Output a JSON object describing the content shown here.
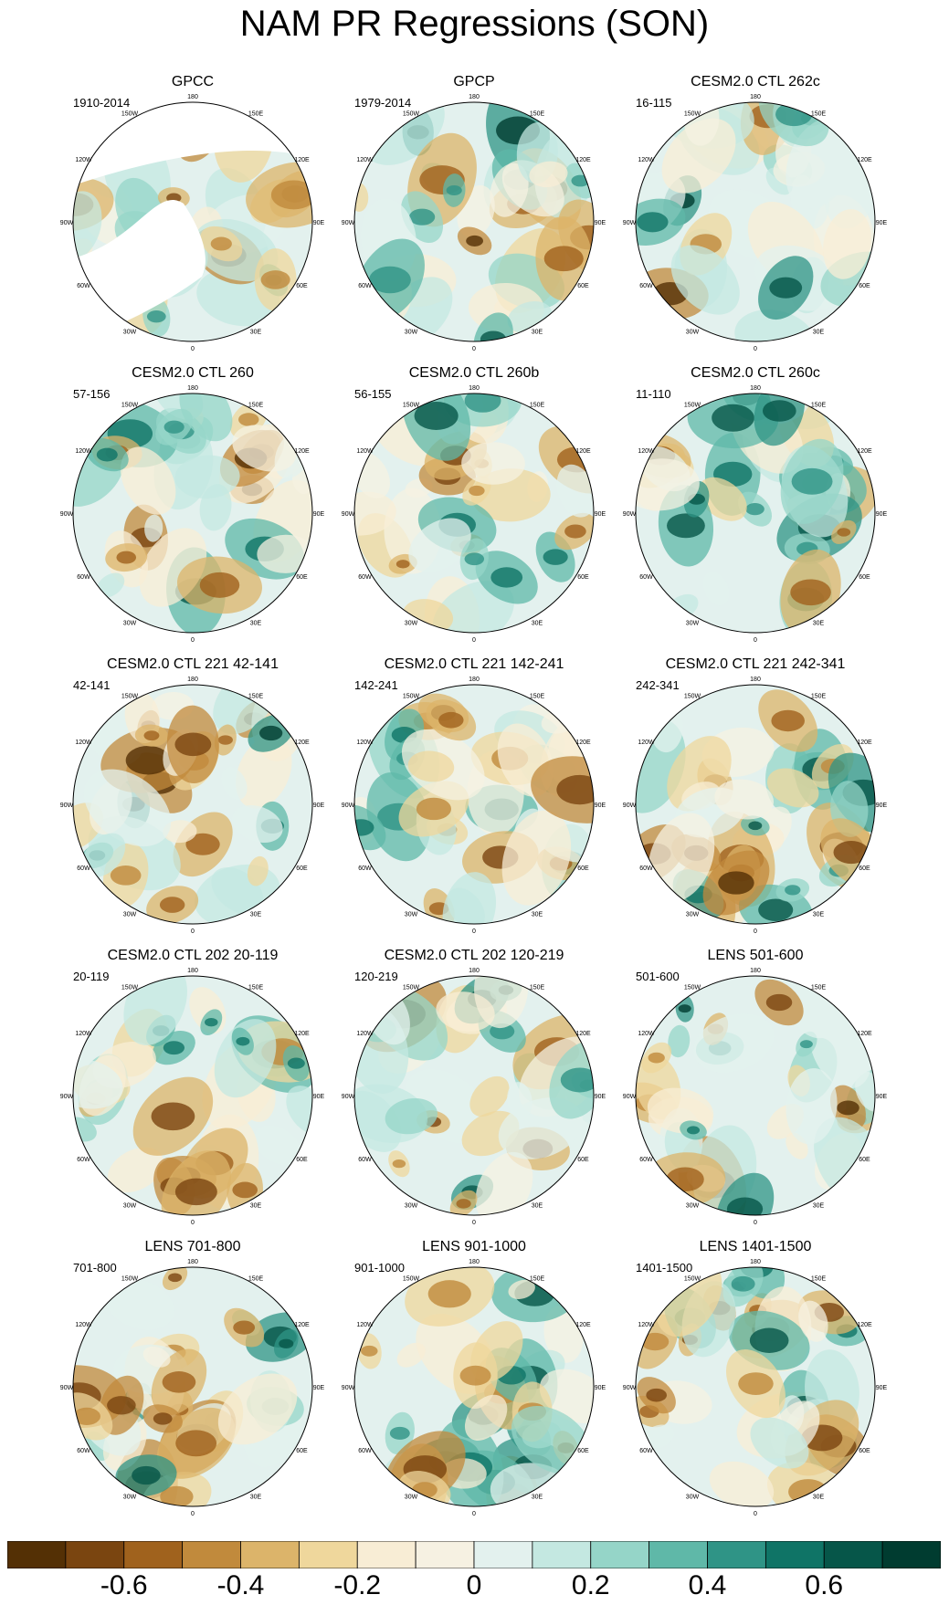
{
  "title": "NAM PR Regressions (SON)",
  "lon_labels": [
    "180",
    "150E",
    "120E",
    "90E",
    "60E",
    "30E",
    "0",
    "30W",
    "60W",
    "90W",
    "120W",
    "150W"
  ],
  "chart_data": {
    "type": "heatmap",
    "projection": "north polar stereographic",
    "variable": "Precipitation regression onto NAM",
    "season": "SON",
    "panels": [
      {
        "title": "GPCC",
        "period": "1910-2014",
        "masked_ocean": true
      },
      {
        "title": "GPCP",
        "period": "1979-2014"
      },
      {
        "title": "CESM2.0 CTL 262c",
        "period": "16-115"
      },
      {
        "title": "CESM2.0 CTL 260",
        "period": "57-156"
      },
      {
        "title": "CESM2.0 CTL 260b",
        "period": "56-155"
      },
      {
        "title": "CESM2.0 CTL 260c",
        "period": "11-110"
      },
      {
        "title": "CESM2.0 CTL 221 42-141",
        "period": "42-141"
      },
      {
        "title": "CESM2.0 CTL 221 142-241",
        "period": "142-241"
      },
      {
        "title": "CESM2.0 CTL 221 242-341",
        "period": "242-341"
      },
      {
        "title": "CESM2.0 CTL 202 20-119",
        "period": "20-119"
      },
      {
        "title": "CESM2.0 CTL 202 120-219",
        "period": "120-219"
      },
      {
        "title": "LENS 501-600",
        "period": "501-600"
      },
      {
        "title": "LENS 701-800",
        "period": "701-800"
      },
      {
        "title": "LENS 901-1000",
        "period": "901-1000"
      },
      {
        "title": "LENS 1401-1500",
        "period": "1401-1500"
      }
    ],
    "colorbar": {
      "levels": [
        -0.7,
        -0.6,
        -0.5,
        -0.4,
        -0.3,
        -0.2,
        -0.1,
        0,
        0.1,
        0.2,
        0.3,
        0.4,
        0.5,
        0.6,
        0.7
      ],
      "colors": [
        "#543005",
        "#7a4510",
        "#a0621d",
        "#c18a3c",
        "#dcb46a",
        "#efd79c",
        "#f8edd5",
        "#f6f1e2",
        "#e3f1ee",
        "#c4e8e1",
        "#95d5c8",
        "#5fb8a8",
        "#2f9486",
        "#0f7466",
        "#065649",
        "#003c30"
      ],
      "tick_labels": [
        "-0.6",
        "-0.4",
        "-0.2",
        "0",
        "0.2",
        "0.4",
        "0.6"
      ],
      "tick_values": [
        -0.6,
        -0.4,
        -0.2,
        0,
        0.2,
        0.4,
        0.6
      ]
    }
  }
}
